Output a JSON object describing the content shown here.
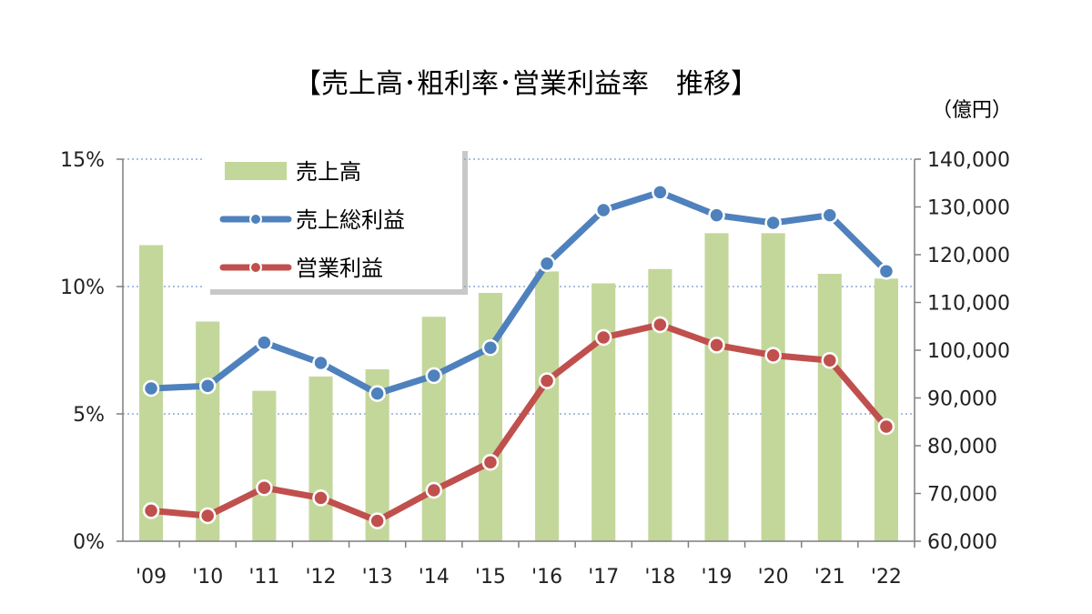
{
  "chart_data": {
    "type": "bar",
    "title": "【売上高･粗利率･営業利益率　推移】",
    "right_axis_unit": "（億円）",
    "categories": [
      "'09",
      "'10",
      "'11",
      "'12",
      "'13",
      "'14",
      "'15",
      "'16",
      "'17",
      "'18",
      "'19",
      "'20",
      "'21",
      "'22"
    ],
    "left_axis": {
      "ticks": [
        "0%",
        "5%",
        "10%",
        "15%"
      ],
      "range": [
        0,
        15
      ]
    },
    "right_axis": {
      "ticks": [
        "60,000",
        "70,000",
        "80,000",
        "90,000",
        "100,000",
        "110,000",
        "120,000",
        "130,000",
        "140,000"
      ],
      "range": [
        60000,
        140000
      ]
    },
    "grid": "dotted horizontal",
    "legend_position": "top-left",
    "series": [
      {
        "name": "売上高",
        "type": "bar",
        "axis": "right",
        "color": "#c4d79b",
        "values": [
          122000,
          106000,
          91500,
          94500,
          96000,
          107000,
          112000,
          116500,
          114000,
          117000,
          124500,
          124500,
          116000,
          115000
        ]
      },
      {
        "name": "売上総利益",
        "type": "line",
        "axis": "left",
        "color": "#4f81bd",
        "values": [
          6.0,
          6.1,
          7.8,
          7.0,
          5.8,
          6.5,
          7.6,
          10.9,
          13.0,
          13.7,
          12.8,
          12.5,
          12.8,
          10.6
        ]
      },
      {
        "name": "営業利益",
        "type": "line",
        "axis": "left",
        "color": "#c0504d",
        "values": [
          1.2,
          1.0,
          2.1,
          1.7,
          0.8,
          2.0,
          3.1,
          6.3,
          8.0,
          8.5,
          7.7,
          7.3,
          7.1,
          4.5
        ]
      }
    ]
  }
}
